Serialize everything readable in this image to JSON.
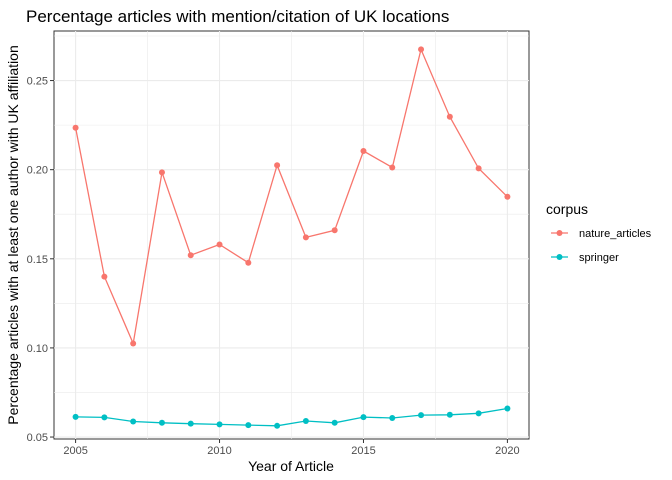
{
  "chart_data": {
    "type": "line",
    "title": "Percentage articles with mention/citation of UK locations",
    "xlabel": "Year of Article",
    "ylabel": "Percentage articles with at least one author with UK affiliation",
    "x": [
      2005,
      2006,
      2007,
      2008,
      2009,
      2010,
      2011,
      2012,
      2013,
      2014,
      2015,
      2016,
      2017,
      2018,
      2019,
      2020
    ],
    "xlim": [
      2004.25,
      2020.75
    ],
    "ylim": [
      0.0489,
      0.2778
    ],
    "xticks": [
      2005,
      2010,
      2015,
      2020
    ],
    "xtick_labels": [
      "2005",
      "2010",
      "2015",
      "2020"
    ],
    "yticks": [
      0.05,
      0.1,
      0.15,
      0.2,
      0.25
    ],
    "ytick_labels": [
      "0.05",
      "0.10",
      "0.15",
      "0.20",
      "0.25"
    ],
    "grid": true,
    "legend": {
      "title": "corpus",
      "position": "right"
    },
    "series": [
      {
        "name": "nature_articles",
        "color": "#F8766D",
        "values": [
          0.2235,
          0.14,
          0.1025,
          0.1985,
          0.152,
          0.158,
          0.1478,
          0.2025,
          0.162,
          0.166,
          0.2105,
          0.2012,
          0.2675,
          0.2297,
          0.2007,
          0.1848
        ]
      },
      {
        "name": "springer",
        "color": "#00BFC4",
        "values": [
          0.0613,
          0.061,
          0.0587,
          0.058,
          0.0575,
          0.0571,
          0.0567,
          0.0563,
          0.059,
          0.058,
          0.0612,
          0.0607,
          0.0623,
          0.0625,
          0.0633,
          0.066
        ]
      }
    ]
  }
}
